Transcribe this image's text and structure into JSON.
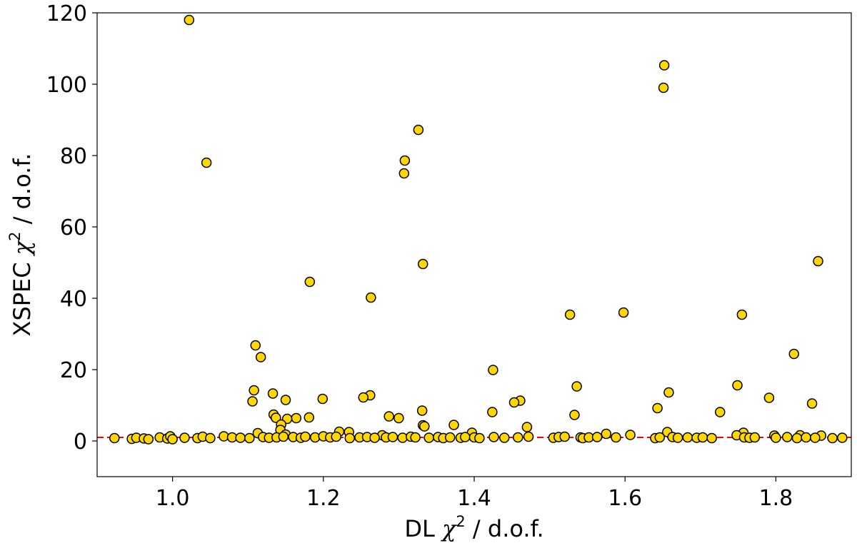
{
  "chart_data": {
    "type": "scatter",
    "xlabel": {
      "pre": "DL ",
      "sym": "χ",
      "sup": "2",
      "post": " / d.o.f."
    },
    "ylabel": {
      "pre": "XSPEC ",
      "sym": "χ",
      "sup": "2",
      "post": " / d.o.f."
    },
    "xlim": [
      0.9,
      1.9
    ],
    "ylim": [
      -10,
      120
    ],
    "x_ticks": [
      1.0,
      1.2,
      1.4,
      1.6,
      1.8
    ],
    "x_tick_labels": [
      "1.0",
      "1.2",
      "1.4",
      "1.6",
      "1.8"
    ],
    "y_ticks": [
      0,
      20,
      40,
      60,
      80,
      100,
      120
    ],
    "y_tick_labels": [
      "0",
      "20",
      "40",
      "60",
      "80",
      "100",
      "120"
    ],
    "reference_line": {
      "y": 1,
      "style": "dashed",
      "color": "#ff0000"
    },
    "marker_color": "#ffd700",
    "marker_edge_color": "#000000",
    "points": [
      [
        1.022,
        118
      ],
      [
        1.045,
        78
      ],
      [
        1.652,
        105.3
      ],
      [
        1.651,
        99
      ],
      [
        1.326,
        87.2
      ],
      [
        1.308,
        78.6
      ],
      [
        1.307,
        75
      ],
      [
        1.856,
        50.4
      ],
      [
        1.332,
        49.6
      ],
      [
        1.182,
        44.6
      ],
      [
        1.263,
        40.2
      ],
      [
        1.598,
        36
      ],
      [
        1.527,
        35.4
      ],
      [
        1.755,
        35.4
      ],
      [
        1.824,
        24.4
      ],
      [
        1.11,
        26.8
      ],
      [
        1.117,
        23.5
      ],
      [
        1.425,
        19.9
      ],
      [
        1.536,
        15.3
      ],
      [
        1.749,
        15.6
      ],
      [
        1.108,
        14.2
      ],
      [
        1.133,
        13.3
      ],
      [
        1.658,
        13.6
      ],
      [
        1.262,
        12.8
      ],
      [
        1.253,
        12.2
      ],
      [
        1.791,
        12.1
      ],
      [
        1.199,
        11.8
      ],
      [
        1.15,
        11.5
      ],
      [
        1.461,
        11.3
      ],
      [
        1.453,
        10.8
      ],
      [
        1.106,
        11.1
      ],
      [
        1.848,
        10.5
      ],
      [
        1.643,
        9.2
      ],
      [
        1.331,
        8.5
      ],
      [
        1.424,
        8.1
      ],
      [
        1.726,
        8.1
      ],
      [
        1.134,
        7.4
      ],
      [
        1.533,
        7.3
      ],
      [
        1.287,
        6.9
      ],
      [
        1.137,
        6.5
      ],
      [
        1.181,
        6.6
      ],
      [
        1.3,
        6.4
      ],
      [
        1.164,
        6.4
      ],
      [
        1.152,
        6.2
      ],
      [
        1.144,
        4.6
      ],
      [
        1.332,
        4.4
      ],
      [
        1.373,
        4.5
      ],
      [
        1.47,
        3.9
      ],
      [
        1.334,
        4.1
      ],
      [
        1.143,
        3.1
      ],
      [
        1.221,
        2.6
      ],
      [
        1.234,
        2.5
      ],
      [
        1.656,
        2.5
      ],
      [
        1.757,
        2.3
      ],
      [
        1.113,
        2.2
      ],
      [
        1.397,
        2.3
      ],
      [
        1.575,
        2.0
      ],
      [
        1.15,
        1.8
      ],
      [
        1.278,
        1.6
      ],
      [
        1.607,
        1.7
      ],
      [
        1.832,
        1.6
      ],
      [
        1.86,
        1.5
      ],
      [
        1.748,
        1.6
      ],
      [
        1.798,
        1.5
      ],
      [
        0.923,
        0.8
      ],
      [
        0.946,
        0.6
      ],
      [
        0.952,
        0.9
      ],
      [
        0.962,
        0.7
      ],
      [
        0.968,
        0.5
      ],
      [
        0.983,
        1.0
      ],
      [
        0.993,
        0.7
      ],
      [
        0.997,
        1.3
      ],
      [
        1.0,
        0.5
      ],
      [
        1.016,
        0.9
      ],
      [
        1.033,
        0.8
      ],
      [
        1.04,
        1.2
      ],
      [
        1.05,
        0.8
      ],
      [
        1.068,
        1.3
      ],
      [
        1.079,
        1.0
      ],
      [
        1.09,
        0.9
      ],
      [
        1.102,
        0.8
      ],
      [
        1.12,
        1.1
      ],
      [
        1.128,
        0.9
      ],
      [
        1.138,
        1.0
      ],
      [
        1.147,
        1.2
      ],
      [
        1.16,
        1.1
      ],
      [
        1.17,
        0.9
      ],
      [
        1.176,
        1.2
      ],
      [
        1.189,
        1.0
      ],
      [
        1.2,
        1.3
      ],
      [
        1.209,
        1.0
      ],
      [
        1.217,
        1.2
      ],
      [
        1.235,
        0.8
      ],
      [
        1.248,
        1.0
      ],
      [
        1.258,
        1.1
      ],
      [
        1.268,
        0.9
      ],
      [
        1.283,
        1.0
      ],
      [
        1.292,
        1.1
      ],
      [
        1.305,
        0.9
      ],
      [
        1.316,
        1.2
      ],
      [
        1.322,
        1.0
      ],
      [
        1.34,
        0.9
      ],
      [
        1.352,
        1.1
      ],
      [
        1.359,
        0.8
      ],
      [
        1.368,
        1.0
      ],
      [
        1.382,
        0.9
      ],
      [
        1.388,
        1.1
      ],
      [
        1.4,
        1.0
      ],
      [
        1.407,
        0.8
      ],
      [
        1.426,
        1.1
      ],
      [
        1.44,
        0.9
      ],
      [
        1.458,
        1.0
      ],
      [
        1.472,
        1.2
      ],
      [
        1.505,
        0.9
      ],
      [
        1.512,
        1.1
      ],
      [
        1.52,
        1.2
      ],
      [
        1.541,
        1.0
      ],
      [
        1.544,
        0.8
      ],
      [
        1.552,
        1.0
      ],
      [
        1.563,
        1.1
      ],
      [
        1.588,
        1.0
      ],
      [
        1.64,
        0.8
      ],
      [
        1.646,
        1.0
      ],
      [
        1.663,
        1.1
      ],
      [
        1.67,
        0.9
      ],
      [
        1.683,
        1.0
      ],
      [
        1.695,
        0.9
      ],
      [
        1.703,
        1.0
      ],
      [
        1.715,
        0.8
      ],
      [
        1.758,
        1.0
      ],
      [
        1.765,
        0.9
      ],
      [
        1.772,
        1.0
      ],
      [
        1.8,
        0.9
      ],
      [
        1.815,
        1.1
      ],
      [
        1.828,
        0.8
      ],
      [
        1.84,
        1.0
      ],
      [
        1.852,
        0.9
      ],
      [
        1.875,
        0.8
      ],
      [
        1.888,
        0.9
      ]
    ]
  }
}
